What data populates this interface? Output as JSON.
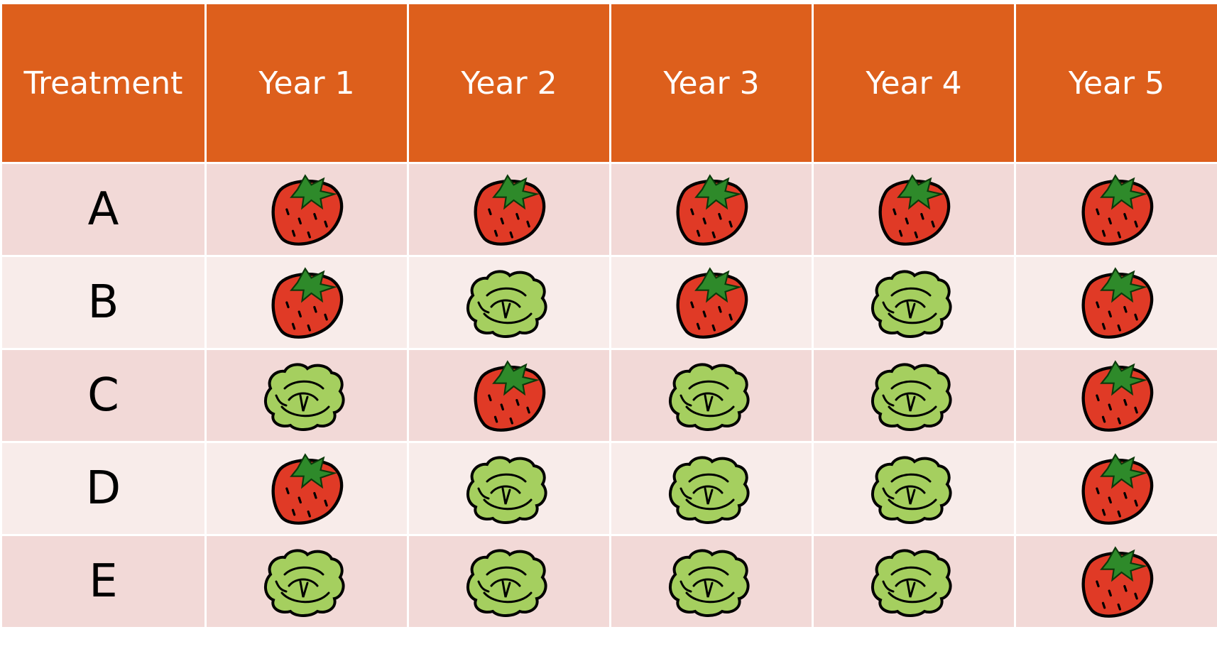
{
  "table": {
    "header": [
      "Treatment",
      "Year 1",
      "Year 2",
      "Year 3",
      "Year 4",
      "Year 5"
    ],
    "rows": [
      "A",
      "B",
      "C",
      "D",
      "E"
    ]
  }
}
